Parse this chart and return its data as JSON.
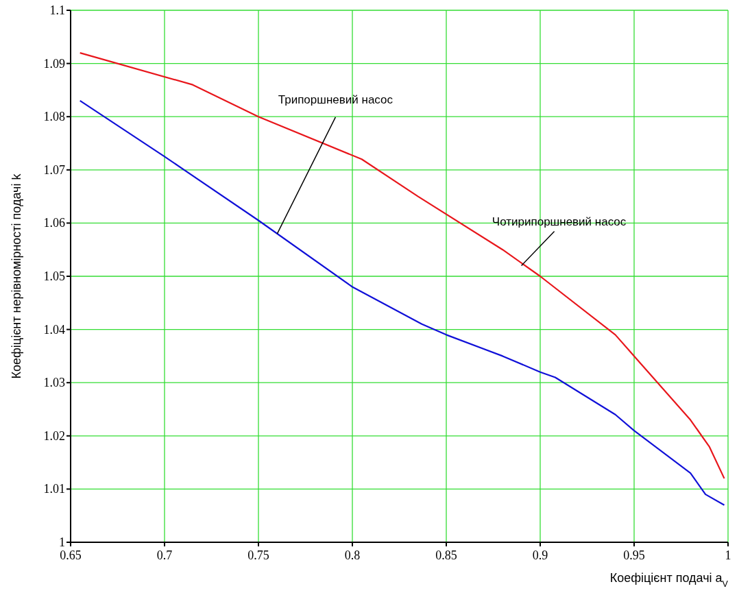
{
  "chart_data": {
    "type": "line",
    "xlabel": "Коефіцієнт подачі a$_{V}$",
    "ylabel": "Коефіцієнт нерівномірності подачі k",
    "series": [
      {
        "color": "#e8161b",
        "x": [
          0.655,
          0.715,
          0.75,
          0.805,
          0.835,
          0.88,
          0.9,
          0.94,
          0.95,
          0.98,
          0.99,
          0.998
        ],
        "values": [
          1.092,
          1.086,
          1.08,
          1.072,
          1.065,
          1.055,
          1.05,
          1.039,
          1.035,
          1.023,
          1.018,
          1.012
        ]
      },
      {
        "color": "#1010d8",
        "x": [
          0.655,
          0.7,
          0.75,
          0.8,
          0.837,
          0.85,
          0.88,
          0.9,
          0.908,
          0.94,
          0.95,
          0.98,
          0.988,
          0.998
        ],
        "values": [
          1.083,
          1.0725,
          1.0605,
          1.048,
          1.041,
          1.039,
          1.035,
          1.032,
          1.031,
          1.024,
          1.021,
          1.013,
          1.009,
          1.007
        ]
      }
    ],
    "annotations": [
      {
        "text": "Трипоршневий насос",
        "x": 0.76,
        "y": 1.058
      },
      {
        "text": "Чотирипоршневий насос",
        "x": 0.89,
        "y": 1.052
      }
    ],
    "xlim": [
      0.65,
      1
    ],
    "xticks": [
      0.65,
      0.7,
      0.75,
      0.8,
      0.85,
      0.9,
      0.95,
      1
    ],
    "ylim": [
      1,
      1.1
    ],
    "yticks": [
      1,
      1.01,
      1.02,
      1.03,
      1.04,
      1.05,
      1.06,
      1.07,
      1.08,
      1.09,
      1.1
    ],
    "grid": true,
    "marker": "none",
    "line_style": "solid"
  }
}
